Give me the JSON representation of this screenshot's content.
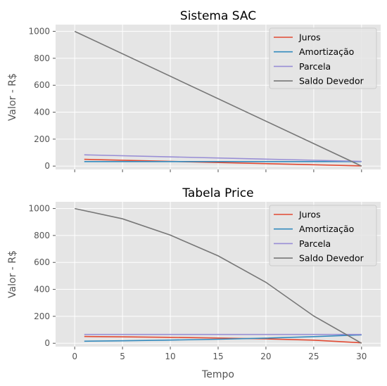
{
  "colors": {
    "plot_bg": "#E5E5E5",
    "grid": "#FFFFFF",
    "juros": "#E24A33",
    "amortizacao": "#348ABD",
    "parcela": "#988ED5",
    "saldo": "#777777"
  },
  "chart_data": [
    {
      "type": "line",
      "title": "Sistema SAC",
      "xlabel": "",
      "ylabel": "Valor - R$",
      "xlim": [
        -2,
        32
      ],
      "ylim": [
        -25,
        1050
      ],
      "xticks": [
        0,
        5,
        10,
        15,
        20,
        25,
        30
      ],
      "xtick_labels_visible": false,
      "yticks": [
        0,
        200,
        400,
        600,
        800,
        1000
      ],
      "grid": true,
      "legend_position": "top-right",
      "series": [
        {
          "name": "Juros",
          "x": [
            1,
            30
          ],
          "values": [
            50,
            1.67
          ]
        },
        {
          "name": "Amortização",
          "x": [
            1,
            30
          ],
          "values": [
            33.33,
            33.33
          ]
        },
        {
          "name": "Parcela",
          "x": [
            1,
            30
          ],
          "values": [
            83.33,
            35
          ]
        },
        {
          "name": "Saldo Devedor",
          "x": [
            0,
            30
          ],
          "values": [
            1000,
            0
          ]
        }
      ]
    },
    {
      "type": "line",
      "title": "Tabela Price",
      "xlabel": "Tempo",
      "ylabel": "Valor - R$",
      "xlim": [
        -2,
        32
      ],
      "ylim": [
        -25,
        1050
      ],
      "xticks": [
        0,
        5,
        10,
        15,
        20,
        25,
        30
      ],
      "xtick_labels_visible": true,
      "yticks": [
        0,
        200,
        400,
        600,
        800,
        1000
      ],
      "grid": true,
      "legend_position": "top-right",
      "series": [
        {
          "name": "Juros",
          "x": [
            1,
            5,
            10,
            15,
            20,
            25,
            30
          ],
          "values": [
            50,
            47.7,
            44,
            38.9,
            32.3,
            23.2,
            3.1
          ]
        },
        {
          "name": "Amortização",
          "x": [
            1,
            5,
            10,
            15,
            20,
            25,
            30
          ],
          "values": [
            15.1,
            18.4,
            23.5,
            30,
            38.3,
            48.9,
            62
          ]
        },
        {
          "name": "Parcela",
          "x": [
            1,
            30
          ],
          "values": [
            65.1,
            65.1
          ]
        },
        {
          "name": "Saldo Devedor",
          "x": [
            0,
            5,
            10,
            15,
            20,
            25,
            30
          ],
          "values": [
            1000,
            923.6,
            802.4,
            648.8,
            452.7,
            202.1,
            0
          ]
        }
      ]
    }
  ]
}
